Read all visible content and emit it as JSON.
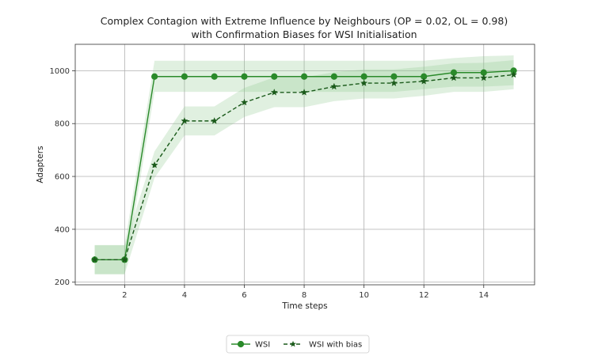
{
  "chart_data": {
    "type": "line",
    "title": "Complex Contagion with Extreme Influence by Neighbours (OP = 0.02, OL = 0.98)",
    "subtitle": "with Confirmation Biases for WSI Initialisation",
    "xlabel": "Time steps",
    "ylabel": "Adapters",
    "x": [
      1,
      2,
      3,
      4,
      5,
      6,
      7,
      8,
      9,
      10,
      11,
      12,
      13,
      14,
      15
    ],
    "xlim": [
      0.35,
      15.7
    ],
    "ylim": [
      190,
      1100
    ],
    "xticks": [
      2,
      4,
      6,
      8,
      10,
      12,
      14
    ],
    "yticks": [
      200,
      400,
      600,
      800,
      1000
    ],
    "grid": true,
    "legend_position": "bottom-center",
    "series": [
      {
        "name": "WSI",
        "values": [
          285,
          285,
          978,
          978,
          978,
          978,
          978,
          978,
          978,
          978,
          978,
          978,
          993,
          993,
          1000
        ],
        "lower": [
          230,
          230,
          920,
          920,
          920,
          920,
          920,
          920,
          920,
          920,
          920,
          930,
          940,
          940,
          945
        ],
        "upper": [
          340,
          340,
          1038,
          1038,
          1038,
          1038,
          1038,
          1038,
          1038,
          1038,
          1038,
          1038,
          1048,
          1055,
          1058
        ],
        "line_style": "solid",
        "marker": "circle",
        "color": "#2a8a2a",
        "band_color": "#8fc98f"
      },
      {
        "name": "WSI with bias",
        "values": [
          285,
          285,
          643,
          810,
          810,
          880,
          918,
          918,
          940,
          953,
          953,
          960,
          973,
          973,
          985
        ],
        "lower": [
          230,
          230,
          595,
          755,
          755,
          825,
          862,
          862,
          885,
          895,
          895,
          905,
          920,
          920,
          930
        ],
        "upper": [
          340,
          340,
          695,
          865,
          865,
          935,
          975,
          975,
          995,
          1005,
          1005,
          1015,
          1028,
          1030,
          1040
        ],
        "line_style": "dashed",
        "marker": "star",
        "color": "#1a5a1a",
        "band_color": "#8fc98f"
      }
    ]
  }
}
